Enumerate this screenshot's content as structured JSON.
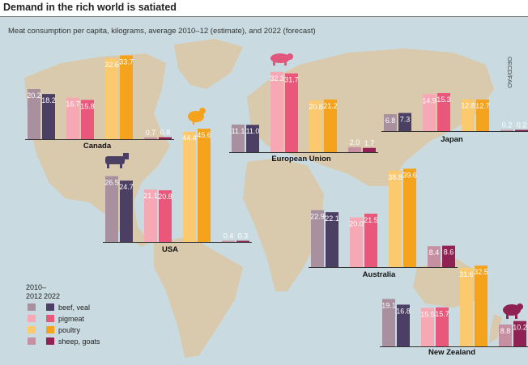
{
  "title": "Demand in the rich world is satiated",
  "subtitle": "Meat consumption per capita, kilograms, average 2010–12 (estimate), and 2022 (forecast)",
  "credit": "OECD/FAO",
  "colors": {
    "beef_2010": "#a8909f",
    "beef_2022": "#4b3f63",
    "pig_2010": "#f6a8b4",
    "pig_2022": "#e9587a",
    "poultry_2010": "#fcca6e",
    "poultry_2022": "#f5a21d",
    "sheep_2010": "#c78fa2",
    "sheep_2022": "#8f2253",
    "map_land": "#d9c9ad",
    "map_water": "#c9dbe1"
  },
  "chart_data": {
    "type": "bar",
    "categories": [
      "beef, veal",
      "pigmeat",
      "poultry",
      "sheep, goats"
    ],
    "series": [
      {
        "name": "2010–2012"
      },
      {
        "name": "2022"
      }
    ],
    "ylabel": "kilograms per capita",
    "ylim": [
      0,
      46
    ],
    "grid": false,
    "legend_position": "bottom-left",
    "countries": [
      {
        "name": "Canada",
        "icon": "chicken-icon",
        "values": [
          [
            20.2,
            18.2
          ],
          [
            16.7,
            15.8
          ],
          [
            32.6,
            33.7
          ],
          [
            0.7,
            0.8
          ]
        ]
      },
      {
        "name": "European Union",
        "icon": "pig-icon",
        "values": [
          [
            11.1,
            11.0
          ],
          [
            32.3,
            31.7
          ],
          [
            20.8,
            21.2
          ],
          [
            2.0,
            1.7
          ]
        ]
      },
      {
        "name": "Japan",
        "icon": "",
        "values": [
          [
            6.8,
            7.3
          ],
          [
            14.9,
            15.3
          ],
          [
            12.8,
            12.7
          ],
          [
            0.2,
            0.2
          ]
        ]
      },
      {
        "name": "USA",
        "icon": "cow-icon",
        "values": [
          [
            26.5,
            24.7
          ],
          [
            21.1,
            20.8
          ],
          [
            44.4,
            45.6
          ],
          [
            0.4,
            0.3
          ]
        ]
      },
      {
        "name": "Australia",
        "icon": "",
        "values": [
          [
            22.9,
            22.1
          ],
          [
            20.0,
            21.5
          ],
          [
            38.8,
            39.6
          ],
          [
            8.4,
            8.6
          ]
        ]
      },
      {
        "name": "New Zealand",
        "icon": "sheep-icon",
        "values": [
          [
            19.1,
            16.8
          ],
          [
            15.5,
            15.7
          ],
          [
            31.6,
            32.5
          ],
          [
            8.8,
            10.2
          ]
        ]
      }
    ]
  },
  "legend": {
    "header_2010": "2010–\n2012",
    "header_2022": "2022",
    "items": [
      "beef, veal",
      "pigmeat",
      "poultry",
      "sheep, goats"
    ]
  }
}
